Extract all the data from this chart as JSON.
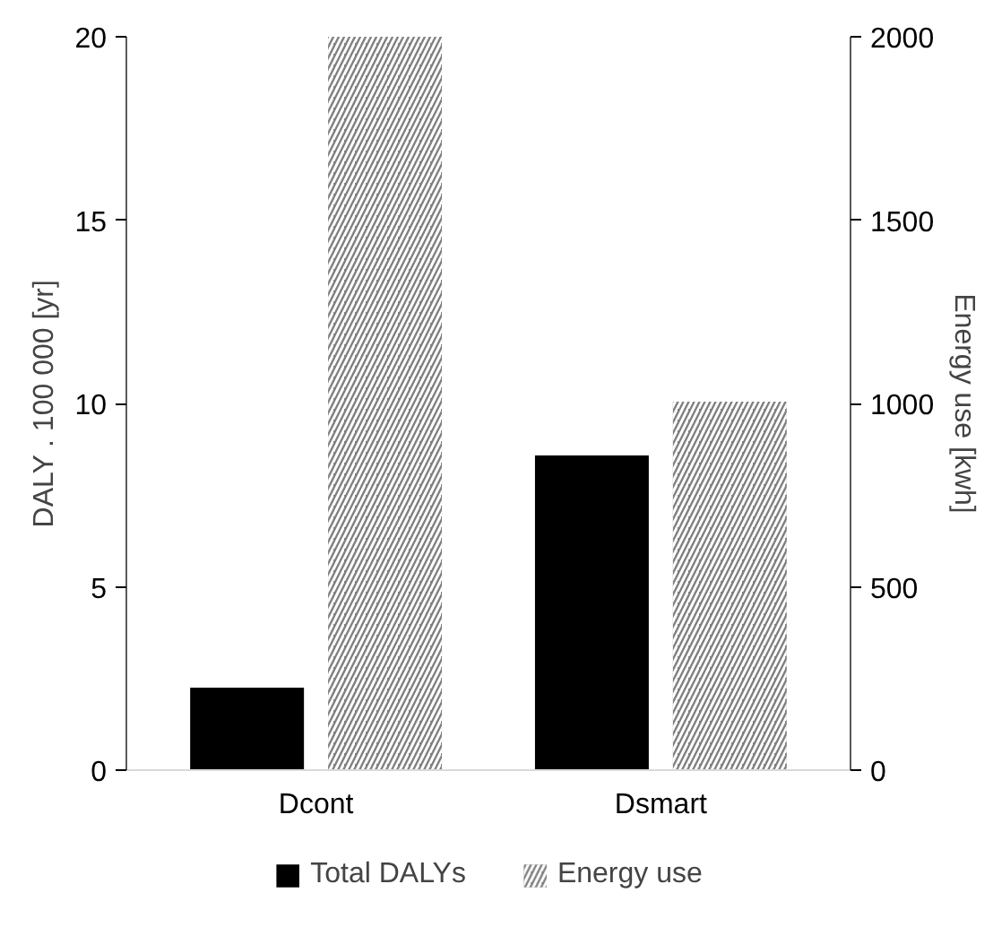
{
  "chart_data": {
    "type": "bar",
    "categories": [
      "Dcont",
      "Dsmart"
    ],
    "ylabel": "DALY . 100 000 [yr]",
    "y2label": "Energy use [kwh]",
    "ylim": [
      0,
      20
    ],
    "yticks": [
      0,
      5,
      10,
      15,
      20
    ],
    "y2lim": [
      0,
      2000
    ],
    "y2ticks": [
      0,
      500,
      1000,
      1500,
      2000
    ],
    "grid": false,
    "legend": "bottom",
    "series": [
      {
        "name": "Total DALYs",
        "color": "#000000",
        "values": [
          2.25,
          8.58
        ]
      },
      {
        "name": "Energy use",
        "color": "#808080",
        "values": [
          2000,
          1005
        ],
        "axis": "y2"
      }
    ]
  }
}
